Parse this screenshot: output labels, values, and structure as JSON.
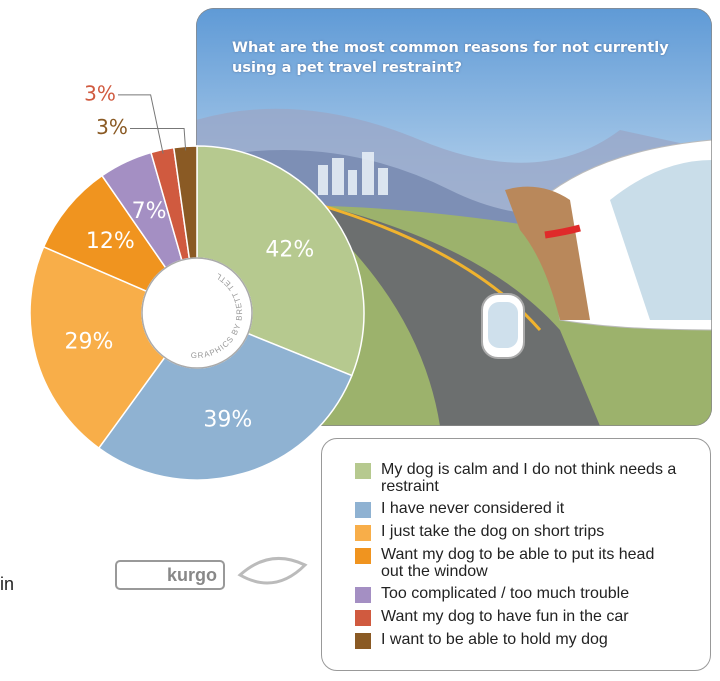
{
  "chart_data": {
    "type": "pie",
    "title": "What are the most common reasons for not currently using a pet travel restraint?",
    "categories": [
      "My dog is calm and I do not think needs a restraint",
      "I have never considered it",
      "I just take the dog on short trips",
      "Want my dog to be able to put its head out the window",
      "Too complicated / too much trouble",
      "Want my dog to have fun in the car",
      "I want to be able to hold my dog"
    ],
    "values": [
      42,
      39,
      29,
      12,
      7,
      3,
      3
    ],
    "value_labels": [
      "42%",
      "39%",
      "29%",
      "12%",
      "7%",
      "3%",
      "3%"
    ],
    "colors": [
      "#b6c98f",
      "#8fb2d2",
      "#f8ae49",
      "#f0941f",
      "#a48fc3",
      "#d05a3f",
      "#8a5a24"
    ],
    "credit": "Graphics by Brett Tetley"
  },
  "footer": {
    "logo": "kurgo",
    "cut_text": "in"
  }
}
